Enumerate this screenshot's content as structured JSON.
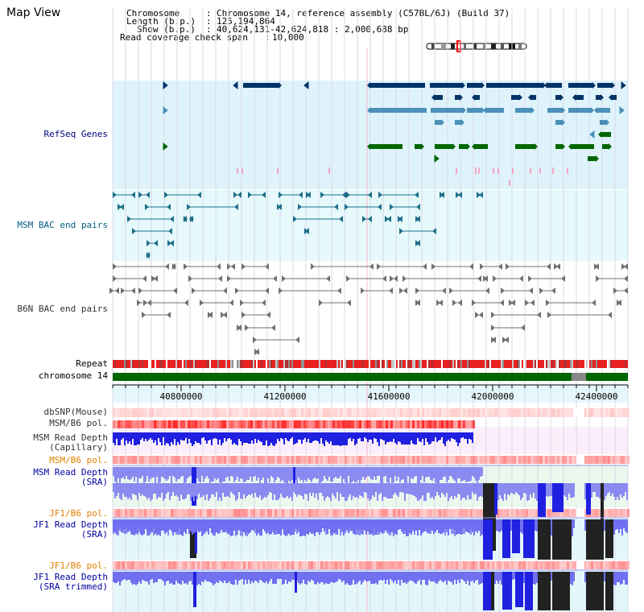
{
  "header": {
    "title": "Map View",
    "chromosome_label": "Chromosome",
    "chromosome_value": "Chromosome 14, reference assembly (C57BL/6J) (Build 37)",
    "length_label": "Length (b.p.)",
    "length_value": "125,194,864",
    "show_label": "Show (b.p.)",
    "show_value": "40,624,131-42,624,818 : 2,000,688 bp",
    "coverage_label": "Read coverage check span",
    "coverage_value": "10,000"
  },
  "tracks": {
    "refseq": "RefSeq Genes",
    "msm_bac": "MSM BAC end pairs",
    "b6n_bac": "B6N BAC end pairs",
    "repeat": "Repeat",
    "chromosome": "chromosome 14",
    "dbsnp": "dbSNP(Mouse)",
    "msm_pol": "MSM/B6 pol.",
    "msm_depth_cap_1": "MSM Read Depth",
    "msm_depth_cap_2": "(Capillary)",
    "msm_pol_2": "MSM/B6 pol.",
    "msm_depth_sra_1": "MSM Read Depth",
    "msm_depth_sra_2": "(SRA)",
    "jf1_pol_1": "JF1/B6 pol.",
    "jf1_depth_sra_1": "JF1 Read Depth",
    "jf1_depth_sra_2": "(SRA)",
    "jf1_pol_2": "JF1/B6 pol.",
    "jf1_depth_trim_1": "JF1 Read Depth",
    "jf1_depth_trim_2": "(SRA trimmed)"
  },
  "axis": {
    "ticks": [
      "40800000",
      "41200000",
      "41600000",
      "42000000",
      "42400000"
    ]
  },
  "colors": {
    "refseq_bg": "#dff3fb",
    "msm_bg": "#e6f9fb",
    "gene_navy": "#003366",
    "gene_teal": "#4a90b8",
    "gene_green": "#006600",
    "gene_pink": "#f4a6c6",
    "bac_teal": "#1f6f8b",
    "bac_gray": "#707070",
    "chromosome_bar": "#006600",
    "repeat_red": "#e02020",
    "depth_blue": "#2020e0",
    "depth_light": "#8a8af0",
    "depth_black": "#222222"
  }
}
